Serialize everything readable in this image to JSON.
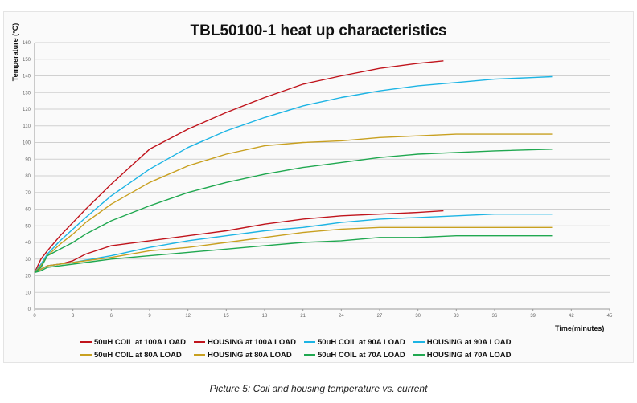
{
  "chart_data": {
    "type": "line",
    "title": "TBL50100-1 heat up characteristics",
    "xlabel": "Time(minutes)",
    "ylabel": "Temperature (°C)",
    "xlim": [
      0,
      45
    ],
    "ylim": [
      0,
      160
    ],
    "xticks": [
      0,
      3,
      6,
      9,
      12,
      15,
      18,
      21,
      24,
      27,
      30,
      33,
      36,
      39,
      42,
      45
    ],
    "yticks": [
      0,
      10,
      20,
      30,
      40,
      50,
      60,
      70,
      80,
      90,
      100,
      110,
      120,
      130,
      140,
      150,
      160
    ],
    "grid": "horizontal",
    "legend_placement": "bottom",
    "series": [
      {
        "name": "50uH COIL at 100A LOAD",
        "color": "#c0141c",
        "x": [
          0,
          0.5,
          1,
          2,
          3,
          4,
          6,
          9,
          12,
          15,
          18,
          21,
          24,
          27,
          30,
          32
        ],
        "y": [
          22,
          30,
          35,
          44,
          52,
          60,
          75,
          96,
          108,
          118,
          127,
          135,
          140,
          144.5,
          147.5,
          149
        ]
      },
      {
        "name": "HOUSING at 100A LOAD",
        "color": "#c0141c",
        "x": [
          0,
          0.5,
          1,
          2,
          3,
          4,
          6,
          9,
          12,
          15,
          18,
          21,
          24,
          27,
          30,
          32
        ],
        "y": [
          22,
          24,
          26,
          27,
          29,
          33,
          38,
          41,
          44,
          47,
          51,
          54,
          56,
          57,
          58,
          59
        ]
      },
      {
        "name": "50uH COIL at 90A LOAD",
        "color": "#1cb4e4",
        "x": [
          0,
          0.5,
          1,
          2,
          3,
          4,
          6,
          9,
          12,
          15,
          18,
          21,
          24,
          27,
          30,
          33,
          36,
          39,
          40.5
        ],
        "y": [
          22,
          27,
          33,
          41,
          48,
          55,
          68,
          84,
          97,
          107,
          115,
          122,
          127,
          131,
          134,
          136,
          138,
          139,
          139.5
        ]
      },
      {
        "name": "HOUSING at 90A LOAD",
        "color": "#1cb4e4",
        "x": [
          0,
          0.5,
          1,
          3,
          6,
          9,
          12,
          15,
          18,
          21,
          24,
          27,
          30,
          33,
          36,
          40.5
        ],
        "y": [
          22,
          24,
          26,
          28,
          32,
          37,
          41,
          44,
          47,
          49,
          52,
          54,
          55,
          56,
          57,
          57
        ]
      },
      {
        "name": "50uH COIL at 80A LOAD",
        "color": "#c8a020",
        "x": [
          0,
          0.5,
          1,
          2,
          3,
          4,
          6,
          9,
          12,
          15,
          18,
          21,
          24,
          27,
          30,
          33,
          36,
          40.5
        ],
        "y": [
          22,
          26,
          32,
          39,
          45,
          52,
          63,
          76,
          86,
          93,
          98,
          100,
          101,
          103,
          104,
          105,
          105,
          105
        ]
      },
      {
        "name": "HOUSING at 80A LOAD",
        "color": "#c8a020",
        "x": [
          0,
          0.5,
          1,
          3,
          6,
          9,
          12,
          15,
          18,
          21,
          24,
          27,
          30,
          33,
          36,
          40.5
        ],
        "y": [
          22,
          24,
          26,
          28,
          31,
          35,
          37,
          40,
          43,
          46,
          48,
          49,
          49,
          49,
          49,
          49
        ]
      },
      {
        "name": "50uH COIL at 70A LOAD",
        "color": "#20a850",
        "x": [
          0,
          0.5,
          1,
          2,
          3,
          4,
          6,
          9,
          12,
          15,
          18,
          21,
          24,
          27,
          30,
          33,
          36,
          40.5
        ],
        "y": [
          22,
          25,
          32,
          36,
          40,
          45,
          53,
          62,
          70,
          76,
          81,
          85,
          88,
          91,
          93,
          94,
          95,
          96
        ]
      },
      {
        "name": "HOUSING at 70A LOAD",
        "color": "#20a850",
        "x": [
          0,
          0.5,
          1,
          3,
          6,
          9,
          12,
          15,
          18,
          21,
          24,
          27,
          30,
          33,
          36,
          40.5
        ],
        "y": [
          22,
          23,
          25,
          27,
          30,
          32,
          34,
          36,
          38,
          40,
          41,
          43,
          43,
          44,
          44,
          44
        ]
      }
    ]
  },
  "caption": "Picture 5: Coil and housing temperature vs. current"
}
